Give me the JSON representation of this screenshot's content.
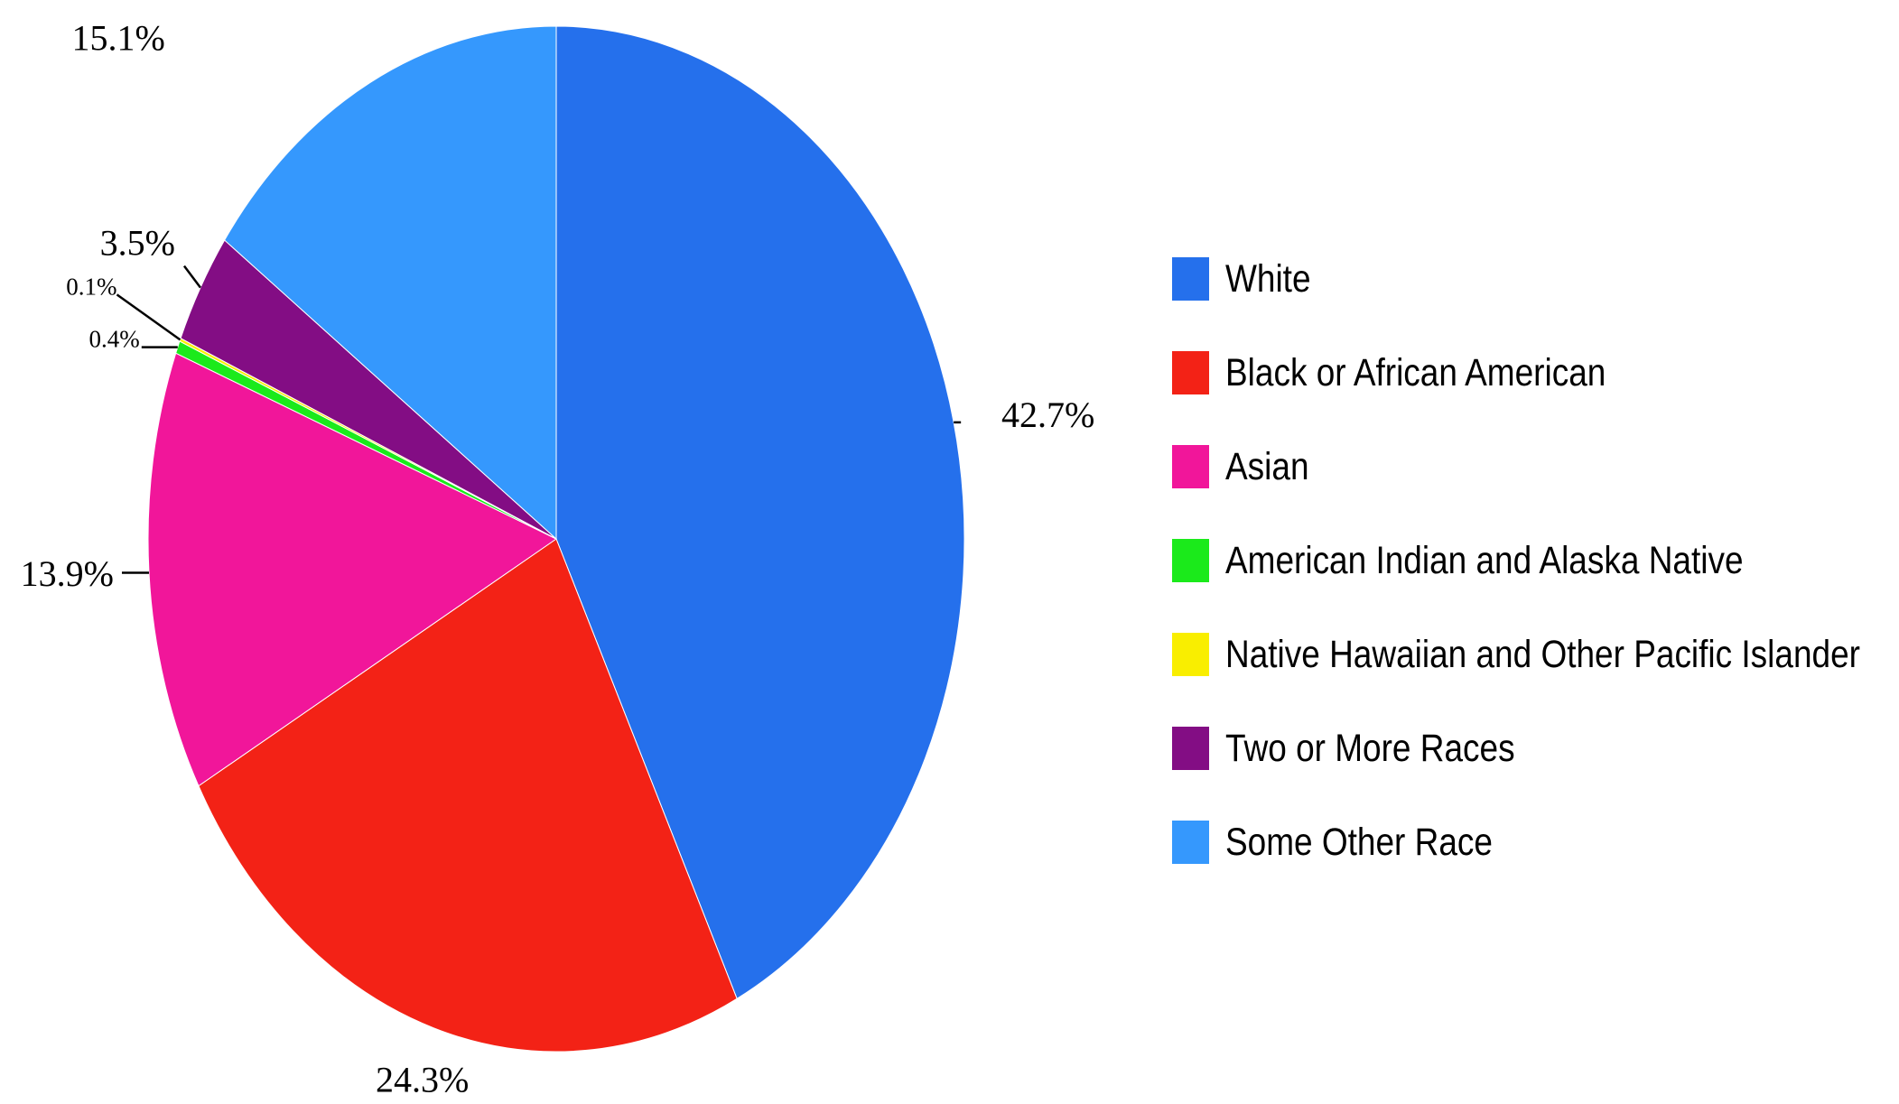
{
  "chart_data": {
    "type": "pie",
    "title": "",
    "legend_position": "right",
    "slices": [
      {
        "label": "White",
        "value": 42.7,
        "display": "42.7%",
        "color": "#2570ec"
      },
      {
        "label": "Black or African American",
        "value": 24.3,
        "display": "24.3%",
        "color": "#f32216"
      },
      {
        "label": "Asian",
        "value": 13.9,
        "display": "13.9%",
        "color": "#f1169a"
      },
      {
        "label": "American Indian and Alaska Native",
        "value": 0.4,
        "display": "0.4%",
        "color": "#1bea1b"
      },
      {
        "label": "Native Hawaiian and Other Pacific Islander",
        "value": 0.1,
        "display": "0.1%",
        "color": "#f9ee00"
      },
      {
        "label": "Two or More Races",
        "value": 3.5,
        "display": "3.5%",
        "color": "#830d84"
      },
      {
        "label": "Some Other Race",
        "value": 15.1,
        "display": "15.1%",
        "color": "#3598fd"
      }
    ]
  },
  "legend": {
    "items": [
      {
        "label": "White",
        "color": "#2570ec"
      },
      {
        "label": "Black or African American",
        "color": "#f32216"
      },
      {
        "label": "Asian",
        "color": "#f1169a"
      },
      {
        "label": "American Indian and Alaska Native",
        "color": "#1bea1b"
      },
      {
        "label": "Native Hawaiian and Other Pacific Islander",
        "color": "#f9ee00"
      },
      {
        "label": "Two or More Races",
        "color": "#830d84"
      },
      {
        "label": "Some Other Race",
        "color": "#3598fd"
      }
    ]
  }
}
